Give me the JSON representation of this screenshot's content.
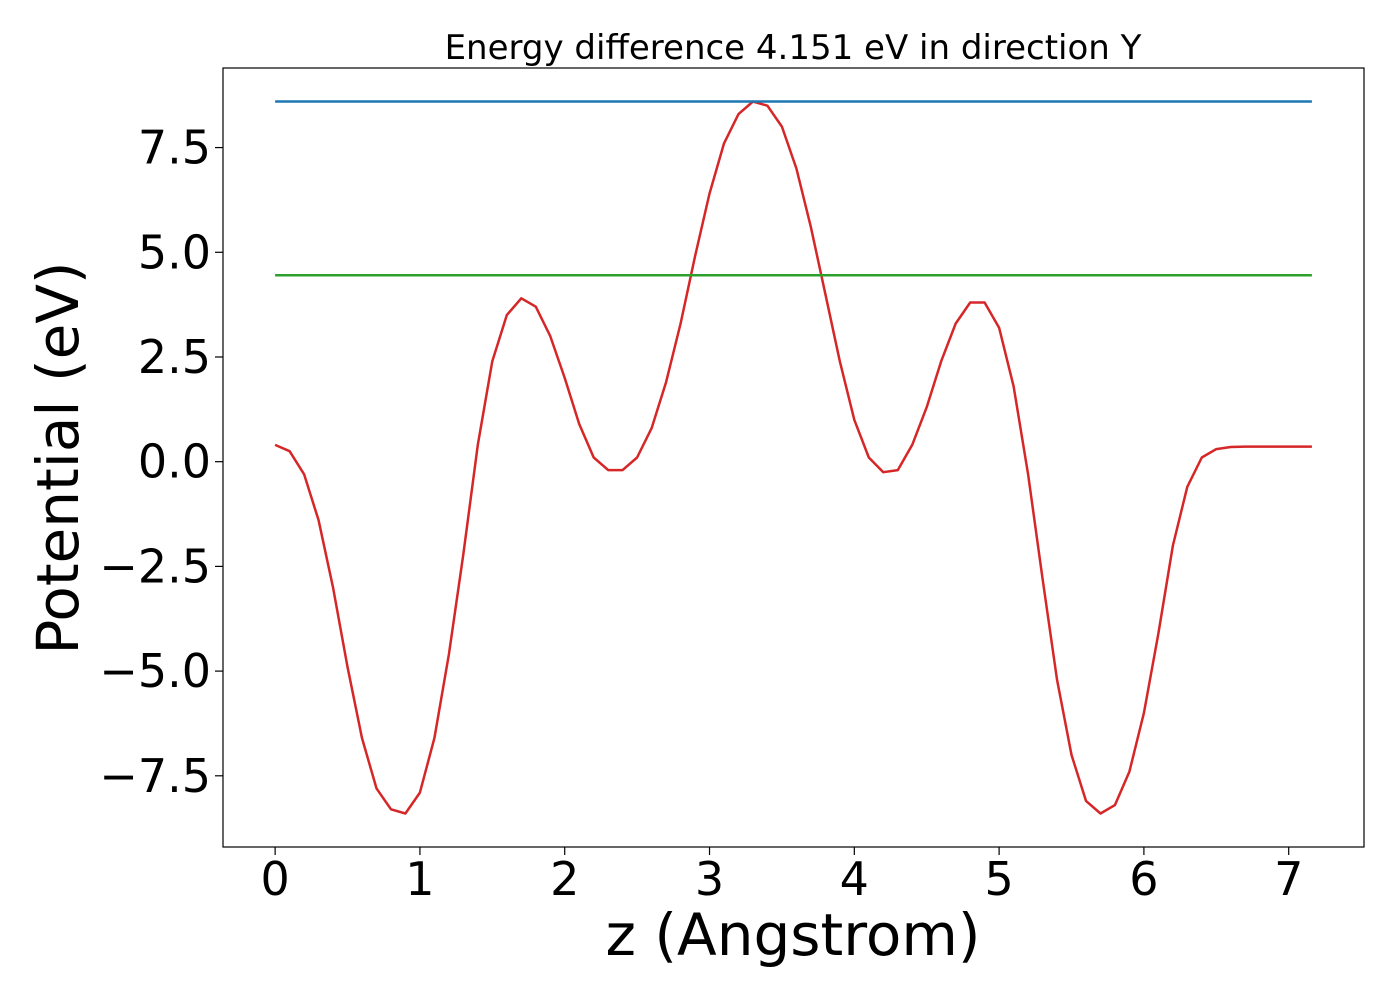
{
  "chart_data": {
    "type": "line",
    "title": "Energy difference 4.151 eV in direction Y",
    "xlabel": "z (Angstrom)",
    "ylabel": "Potential (eV)",
    "xlim": [
      -0.36,
      7.52
    ],
    "ylim": [
      -9.2,
      9.4
    ],
    "xticks": [
      0,
      1,
      2,
      3,
      4,
      5,
      6,
      7
    ],
    "yticks": [
      -7.5,
      -5.0,
      -2.5,
      0.0,
      2.5,
      5.0,
      7.5
    ],
    "xtick_labels": [
      "0",
      "1",
      "2",
      "3",
      "4",
      "5",
      "6",
      "7"
    ],
    "ytick_labels": [
      "−7.5",
      "−5.0",
      "−2.5",
      "0.0",
      "2.5",
      "5.0",
      "7.5"
    ],
    "grid": false,
    "colors": {
      "potential": "#d62728",
      "max": "#1f77b4",
      "mean": "#2ca02c"
    },
    "series": [
      {
        "key": "potential",
        "x": [
          0.0,
          0.1,
          0.2,
          0.3,
          0.4,
          0.5,
          0.6,
          0.7,
          0.8,
          0.9,
          1.0,
          1.1,
          1.2,
          1.3,
          1.4,
          1.5,
          1.6,
          1.7,
          1.8,
          1.9,
          2.0,
          2.1,
          2.2,
          2.3,
          2.4,
          2.5,
          2.6,
          2.7,
          2.8,
          2.9,
          3.0,
          3.1,
          3.2,
          3.3,
          3.4,
          3.5,
          3.6,
          3.7,
          3.8,
          3.9,
          4.0,
          4.1,
          4.2,
          4.3,
          4.4,
          4.5,
          4.6,
          4.7,
          4.8,
          4.9,
          5.0,
          5.1,
          5.2,
          5.3,
          5.4,
          5.5,
          5.6,
          5.7,
          5.8,
          5.9,
          6.0,
          6.1,
          6.2,
          6.3,
          6.4,
          6.5,
          6.6,
          6.7,
          6.8,
          6.9,
          7.0,
          7.1,
          7.16
        ],
        "y": [
          0.4,
          0.25,
          -0.3,
          -1.4,
          -3.0,
          -4.9,
          -6.6,
          -7.8,
          -8.3,
          -8.4,
          -7.9,
          -6.6,
          -4.6,
          -2.2,
          0.4,
          2.4,
          3.5,
          3.9,
          3.7,
          3.0,
          2.0,
          0.9,
          0.1,
          -0.2,
          -0.2,
          0.1,
          0.8,
          1.9,
          3.3,
          4.9,
          6.4,
          7.6,
          8.3,
          8.6,
          8.5,
          8.0,
          7.0,
          5.6,
          4.0,
          2.4,
          1.0,
          0.1,
          -0.25,
          -0.2,
          0.4,
          1.3,
          2.4,
          3.3,
          3.8,
          3.8,
          3.2,
          1.8,
          -0.3,
          -2.8,
          -5.2,
          -7.0,
          -8.1,
          -8.4,
          -8.2,
          -7.4,
          -6.0,
          -4.1,
          -2.0,
          -0.6,
          0.1,
          0.3,
          0.35,
          0.36,
          0.36,
          0.36,
          0.36,
          0.36,
          0.36
        ]
      },
      {
        "key": "max",
        "x": [
          0.0,
          7.16
        ],
        "y": [
          8.6,
          8.6
        ]
      },
      {
        "key": "mean",
        "x": [
          0.0,
          7.16
        ],
        "y": [
          4.45,
          4.45
        ]
      }
    ]
  }
}
